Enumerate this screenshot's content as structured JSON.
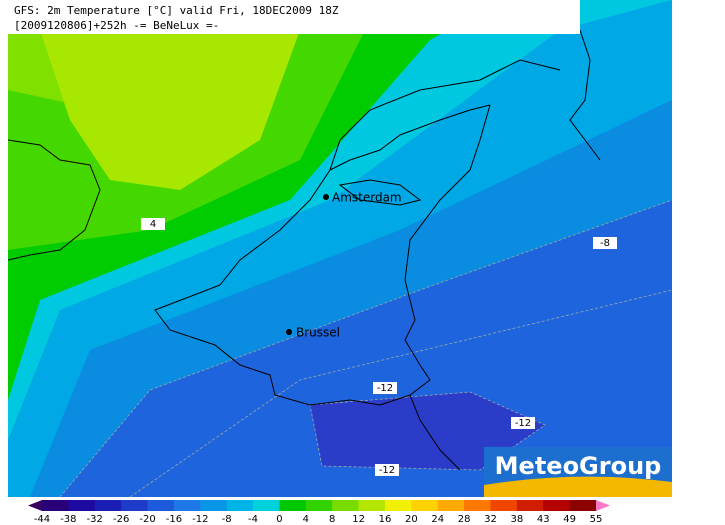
{
  "header": {
    "line1": "GFS: 2m Temperature [°C] valid Fri, 18DEC2009 18Z",
    "line2": "[2009120806]+252h -= BeNeLux =-"
  },
  "cities": [
    {
      "name": "Amsterdam"
    },
    {
      "name": "Brussel"
    }
  ],
  "contour_labels": [
    4,
    -8,
    -12,
    -12,
    -12
  ],
  "logo": "MeteoGroup",
  "colorbar": {
    "ticks": [
      -44,
      -38,
      -32,
      -26,
      -20,
      -16,
      -12,
      -8,
      -4,
      0,
      4,
      8,
      12,
      16,
      20,
      24,
      28,
      32,
      38,
      43,
      49,
      55
    ],
    "colors": [
      "#2a007a",
      "#1e0aa0",
      "#1a1eb4",
      "#1e3cc8",
      "#1e5adc",
      "#1e78e6",
      "#0a96e6",
      "#00b4e6",
      "#00d2dc",
      "#00c800",
      "#32d200",
      "#78dc00",
      "#b4e600",
      "#f0f000",
      "#ffd200",
      "#ffaa00",
      "#ff7800",
      "#f04600",
      "#d21e00",
      "#b40000",
      "#8c0000"
    ]
  }
}
